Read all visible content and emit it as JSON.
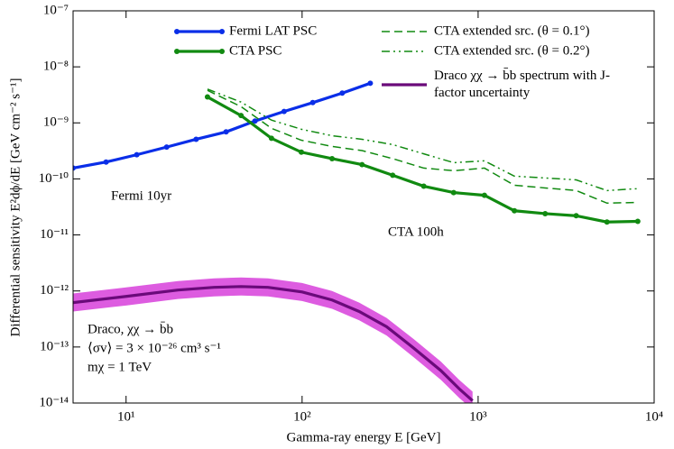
{
  "chart_data": {
    "type": "line",
    "xlabel": "Gamma-ray energy E [GeV]",
    "ylabel": "Differential sensitivity E²dϕ/dE [GeV cm⁻² s⁻¹]",
    "log_x": true,
    "log_y": true,
    "xlim": [
      5,
      10000
    ],
    "ylim": [
      1e-14,
      1e-07
    ],
    "xticks": [
      {
        "value": 10,
        "label": "10¹"
      },
      {
        "value": 100,
        "label": "10²"
      },
      {
        "value": 1000,
        "label": "10³"
      },
      {
        "value": 10000,
        "label": "10⁴"
      }
    ],
    "yticks": [
      {
        "value": 1e-14,
        "label": "10⁻¹⁴"
      },
      {
        "value": 1e-13,
        "label": "10⁻¹³"
      },
      {
        "value": 1e-12,
        "label": "10⁻¹²"
      },
      {
        "value": 1e-11,
        "label": "10⁻¹¹"
      },
      {
        "value": 1e-10,
        "label": "10⁻¹⁰"
      },
      {
        "value": 1e-09,
        "label": "10⁻⁹"
      },
      {
        "value": 1e-08,
        "label": "10⁻⁸"
      },
      {
        "value": 1e-07,
        "label": "10⁻⁷"
      }
    ],
    "series": [
      {
        "name": "Fermi LAT PSC",
        "color": "#0a2ee8",
        "style": "solid",
        "markers": true,
        "x": [
          5,
          7.7,
          11.5,
          17,
          25,
          37,
          54,
          79,
          115,
          169,
          244
        ],
        "values": [
          1.56e-10,
          2e-10,
          2.7e-10,
          3.7e-10,
          5.1e-10,
          6.9e-10,
          1.08e-09,
          1.6e-09,
          2.3e-09,
          3.4e-09,
          5.1e-09
        ]
      },
      {
        "name": "CTA PSC",
        "color": "#118a11",
        "style": "solid",
        "markers": true,
        "x": [
          29,
          45,
          67,
          99,
          148,
          219,
          327,
          491,
          726,
          1086,
          1607,
          2404,
          3606,
          5395,
          8072
        ],
        "values": [
          2.9e-09,
          1.35e-09,
          5.3e-10,
          3e-10,
          2.3e-10,
          1.8e-10,
          1.16e-10,
          7.4e-11,
          5.7e-11,
          5.1e-11,
          2.7e-11,
          2.4e-11,
          2.2e-11,
          1.7e-11,
          1.75e-11
        ]
      },
      {
        "name": "CTA extended src. (θ = 0.1°)",
        "color": "#118a11",
        "style": "dashed",
        "markers": false,
        "x": [
          29,
          45,
          67,
          99,
          148,
          219,
          327,
          491,
          726,
          1086,
          1607,
          2404,
          3606,
          5395,
          8072
        ],
        "values": [
          3.8e-09,
          1.95e-09,
          8e-10,
          4.9e-10,
          3.8e-10,
          3.2e-10,
          2.3e-10,
          1.56e-10,
          1.4e-10,
          1.56e-10,
          7.7e-11,
          6.9e-11,
          6.2e-11,
          3.7e-11,
          3.8e-11
        ]
      },
      {
        "name": "CTA extended src. (θ = 0.2°)",
        "color": "#118a11",
        "style": "dashdot",
        "markers": false,
        "x": [
          29,
          45,
          67,
          99,
          148,
          219,
          327,
          491,
          726,
          1086,
          1607,
          2404,
          3606,
          5395,
          8072
        ],
        "values": [
          4e-09,
          2.35e-09,
          1.12e-09,
          7.7e-10,
          5.9e-10,
          5.1e-10,
          4.1e-10,
          2.8e-10,
          1.95e-10,
          2.1e-10,
          1.12e-10,
          1.04e-10,
          9.6e-11,
          6.2e-11,
          6.7e-11
        ]
      },
      {
        "name": "Draco χχ → b̄b spectrum with J-factor uncertainty",
        "color": "#6a0a7a",
        "band_color": "#dd5ce0",
        "style": "solid",
        "markers": false,
        "x": [
          5,
          10,
          19.7,
          31.6,
          45,
          64,
          100,
          148,
          211,
          302,
          430,
          614,
          780,
          930
        ],
        "values": [
          6.2e-13,
          8e-13,
          1.04e-12,
          1.16e-12,
          1.2e-12,
          1.16e-12,
          9.6e-13,
          6.9e-13,
          4.3e-13,
          2.3e-13,
          9.6e-14,
          3.8e-14,
          1.8e-14,
          1.1e-14
        ],
        "lower": [
          4.3e-13,
          5.5e-13,
          7.2e-13,
          8e-13,
          8.3e-13,
          8e-13,
          6.6e-13,
          4.8e-13,
          3e-13,
          1.6e-13,
          6.6e-14,
          2.6e-14,
          1.24e-14,
          7.6e-15
        ],
        "upper": [
          9e-13,
          1.16e-12,
          1.5e-12,
          1.68e-12,
          1.74e-12,
          1.68e-12,
          1.39e-12,
          1e-12,
          6.2e-13,
          3.3e-13,
          1.39e-13,
          5.5e-14,
          2.6e-14,
          1.6e-14
        ]
      }
    ],
    "annotations": [
      {
        "text": "Fermi 10yr",
        "color": "#0a2ee8"
      },
      {
        "text": "CTA 100h",
        "color": "#118a11"
      },
      {
        "text": "Draco, χχ → b̄b",
        "color": "#000000"
      },
      {
        "text": "⟨σv⟩ = 3 × 10⁻²⁶ cm³ s⁻¹",
        "color": "#000000"
      },
      {
        "text": "mχ = 1 TeV",
        "color": "#000000"
      }
    ]
  }
}
